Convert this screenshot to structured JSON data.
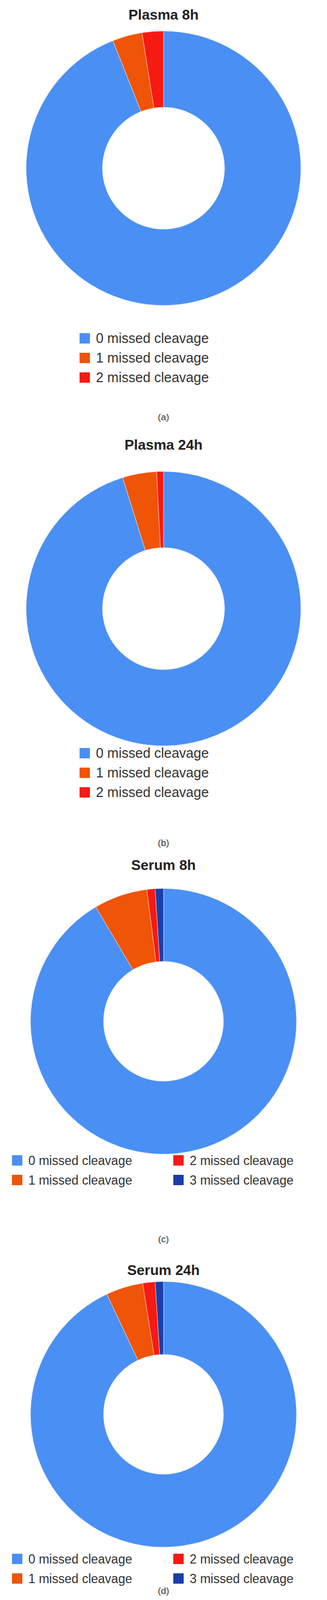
{
  "chart_data": [
    {
      "type": "pie",
      "title": "Plasma 8h",
      "annotations": [
        "(a)"
      ],
      "categories": [
        "0 missed cleavage",
        "1 missed cleavage",
        "2 missed cleavage"
      ],
      "values": [
        94,
        3.5,
        2.5
      ],
      "colors": [
        "#4a8ff4",
        "#ef5407",
        "#f51a12"
      ],
      "legend": "bottom"
    },
    {
      "type": "pie",
      "title": "Plasma 24h",
      "annotations": [
        "(b)"
      ],
      "categories": [
        "0 missed cleavage",
        "1 missed cleavage",
        "2 missed cleavage"
      ],
      "values": [
        95.2,
        4,
        0.8
      ],
      "colors": [
        "#4a8ff4",
        "#ef5407",
        "#f51a12"
      ],
      "legend": "bottom"
    },
    {
      "type": "pie",
      "title": "Serum 8h",
      "annotations": [
        "(c)"
      ],
      "categories": [
        "0 missed cleavage",
        "1 missed cleavage",
        "2 missed cleavage",
        "3 missed cleavage"
      ],
      "values": [
        91.5,
        6.5,
        1,
        1
      ],
      "colors": [
        "#4a8ff4",
        "#ef5407",
        "#f51a12",
        "#1a3ea8"
      ],
      "legend": "bottom"
    },
    {
      "type": "pie",
      "title": "Serum 24h",
      "annotations": [
        "(d)"
      ],
      "categories": [
        "0 missed cleavage",
        "1 missed cleavage",
        "2 missed cleavage",
        "3 missed cleavage"
      ],
      "values": [
        93,
        4.5,
        1.5,
        1
      ],
      "colors": [
        "#4a8ff4",
        "#ef5407",
        "#f51a12",
        "#1a3ea8"
      ],
      "legend": "bottom"
    }
  ]
}
